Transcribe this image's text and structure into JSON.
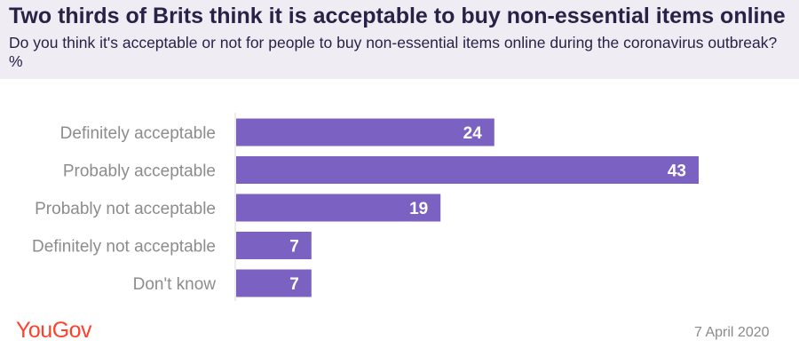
{
  "header": {
    "title": "Two thirds of Brits think it is acceptable to buy non-essential items online",
    "subtitle": "Do you think it's acceptable or not for people to buy non-essential items online during the coronavirus outbreak?%"
  },
  "footer": {
    "logo_text": "YouGov",
    "date": "7 April 2020"
  },
  "colors": {
    "bar": "#7b62c2",
    "bar_label": "#ffffff",
    "category_label": "#8c8c8c",
    "title": "#2a2147",
    "header_bg": "#efedf3",
    "logo": "#ff412c"
  },
  "chart_data": {
    "type": "bar",
    "orientation": "horizontal",
    "categories": [
      "Definitely acceptable",
      "Probably acceptable",
      "Probably not acceptable",
      "Definitely not acceptable",
      "Don't know"
    ],
    "values": [
      24,
      43,
      19,
      7,
      7
    ],
    "xlim": [
      0,
      43
    ],
    "grid": false,
    "data_labels": true
  }
}
